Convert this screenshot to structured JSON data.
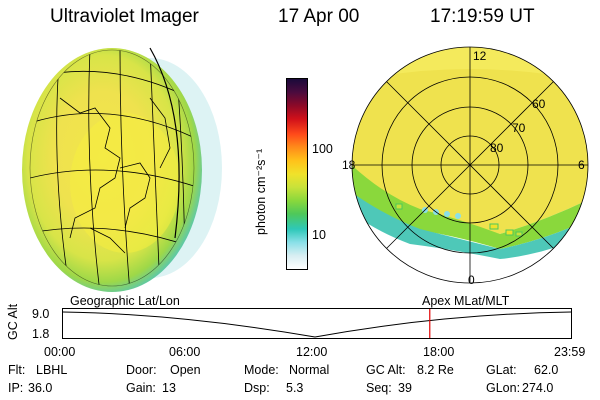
{
  "header": {
    "instrument": "Ultraviolet Imager",
    "date": "17 Apr 00",
    "time": "17:19:59 UT"
  },
  "colorbar": {
    "unit_label": "photon cm⁻²s⁻¹",
    "ticks": [
      "100",
      "10"
    ],
    "colors": [
      "#1a0a3a",
      "#4b0b3e",
      "#8c0a28",
      "#d0101a",
      "#ff4a1a",
      "#ff8c1a",
      "#ffc21a",
      "#f0e22a",
      "#c8e23a",
      "#8ad83c",
      "#4ec85a",
      "#2ec8b8",
      "#8ae0e8",
      "#d8eef2",
      "#ffffff"
    ]
  },
  "polar_plot": {
    "mlt_labels": {
      "top": "12",
      "left": "18",
      "right": "6",
      "bottom": "0"
    },
    "lat_labels": [
      "60",
      "70",
      "80"
    ]
  },
  "timeline": {
    "left_label": "Geographic Lat/Lon",
    "right_label": "Apex MLat/MLT",
    "y_axis_title": "GC Alt",
    "y_ticks": [
      "9.0",
      "1.8"
    ],
    "x_ticks": [
      "00:00",
      "06:00",
      "12:00",
      "18:00",
      "23:59"
    ],
    "cursor_time_fraction": 0.722
  },
  "info": [
    {
      "label": "Flt:",
      "value": "LBHL"
    },
    {
      "label": "Door:",
      "value": "Open"
    },
    {
      "label": "Mode:",
      "value": "Normal"
    },
    {
      "label": "GC Alt:",
      "value": "8.2 Re"
    },
    {
      "label": "GLat:",
      "value": "62.0"
    },
    {
      "label": "IP:",
      "value": "36.0"
    },
    {
      "label": "Gain:",
      "value": "13"
    },
    {
      "label": "Dsp:",
      "value": "5.3"
    },
    {
      "label": "Seq:",
      "value": "39"
    },
    {
      "label": "GLon:",
      "value": "274.0"
    }
  ]
}
